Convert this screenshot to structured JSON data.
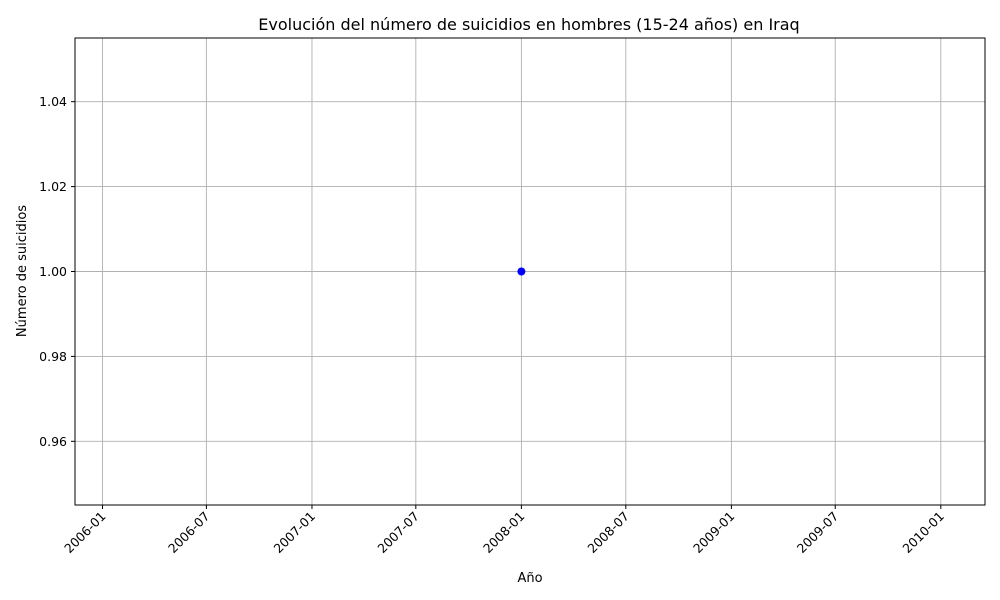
{
  "chart_data": {
    "type": "line",
    "title": "Evolución del número de suicidios en hombres (15-24 años) en Iraq",
    "xlabel": "Año",
    "ylabel": "Número de suicidios",
    "x_axis": {
      "kind": "date",
      "range": [
        "2005-11-14",
        "2010-03-19"
      ],
      "ticks": [
        "2006-01-01",
        "2006-07-01",
        "2007-01-01",
        "2007-07-01",
        "2008-01-01",
        "2008-07-01",
        "2009-01-01",
        "2009-07-01",
        "2010-01-01"
      ],
      "tick_labels": [
        "2006-01",
        "2006-07",
        "2007-01",
        "2007-07",
        "2008-01",
        "2008-07",
        "2009-01",
        "2009-07",
        "2010-01"
      ],
      "tick_label_rotation": "45deg"
    },
    "y_axis": {
      "ylim": [
        0.945,
        1.055
      ],
      "ticks": [
        0.96,
        0.98,
        1.0,
        1.02,
        1.04
      ],
      "tick_labels": [
        "0.96",
        "0.98",
        "1.00",
        "1.02",
        "1.04"
      ]
    },
    "grid": true,
    "series": [
      {
        "color": "#0000ff",
        "marker": "circle",
        "points": [
          {
            "x": "2008-01-01",
            "y": 1.0
          }
        ]
      }
    ]
  }
}
